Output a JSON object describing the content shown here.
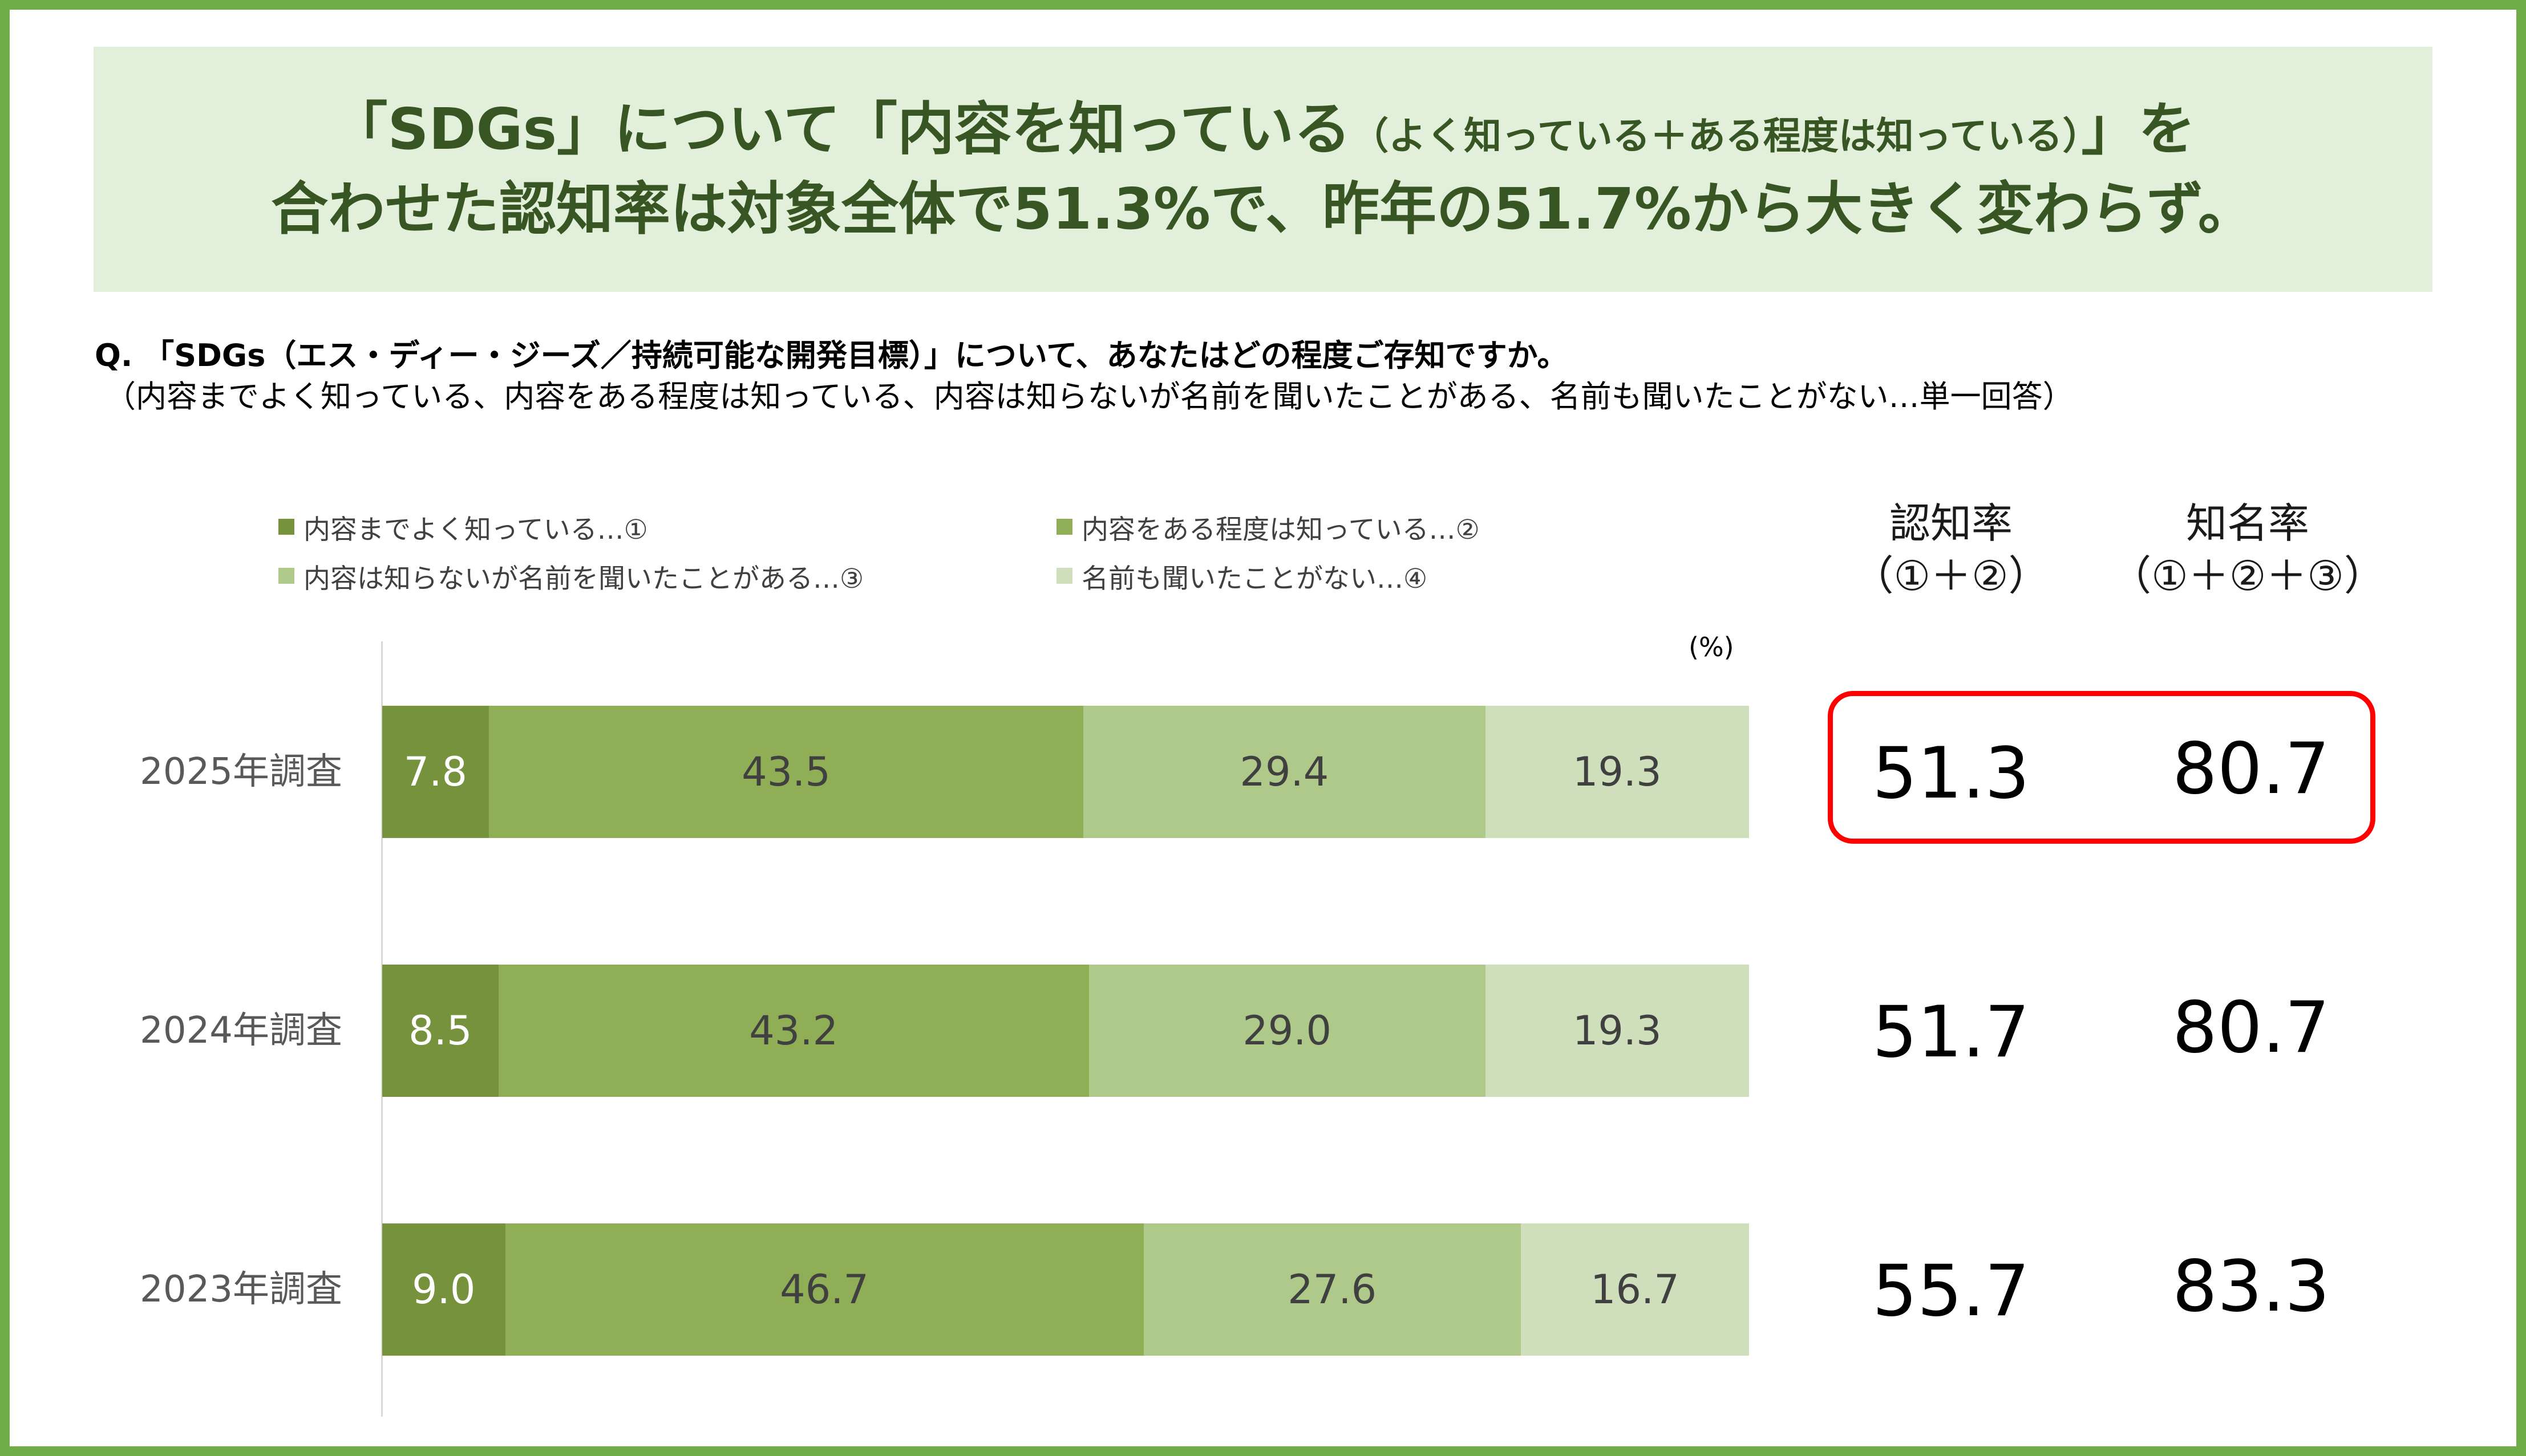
{
  "headline": {
    "line1_prefix": "「SDGs」について「内容を知っている",
    "line1_small": "（よく知っている＋ある程度は知っている）",
    "line1_suffix": "」を",
    "line2": "合わせた認知率は対象全体で51.3%で、昨年の51.7%から大きく変わらず。"
  },
  "question": {
    "line1": "Q. 「SDGs（エス・ディー・ジーズ／持続可能な開発目標）」について、あなたはどの程度ご存知ですか。",
    "line2": "（内容までよく知っている、内容をある程度は知っている、内容は知らないが名前を聞いたことがある、名前も聞いたことがない…単一回答）"
  },
  "columns": {
    "recognition": {
      "title": "認知率",
      "formula": "（①＋②）"
    },
    "awareness": {
      "title": "知名率",
      "formula": "（①＋②＋③）"
    }
  },
  "chart_data": {
    "type": "bar",
    "orientation": "horizontal",
    "stacked": true,
    "unit": "(%)",
    "xlim": [
      0,
      100
    ],
    "categories": [
      "2025年調査",
      "2024年調査",
      "2023年調査"
    ],
    "series": [
      {
        "name": "内容までよく知っている…①",
        "color": "#76923c",
        "values": [
          7.8,
          8.5,
          9.0
        ]
      },
      {
        "name": "内容をある程度は知っている…②",
        "color": "#8fae55",
        "values": [
          43.5,
          43.2,
          46.7
        ]
      },
      {
        "name": "内容は知らないが名前を聞いたことがある…③",
        "color": "#aec98a",
        "values": [
          29.4,
          29.0,
          27.6
        ]
      },
      {
        "name": "名前も聞いたことがない…④",
        "color": "#cfdfbb",
        "values": [
          19.3,
          19.3,
          16.7
        ]
      }
    ],
    "value_labels": [
      [
        "7.8",
        "43.5",
        "29.4",
        "19.3"
      ],
      [
        "8.5",
        "43.2",
        "29.0",
        "19.3"
      ],
      [
        "9.0",
        "46.7",
        "27.6",
        "16.7"
      ]
    ],
    "recognition_rate": [
      "51.3",
      "51.7",
      "55.7"
    ],
    "awareness_rate": [
      "80.7",
      "80.7",
      "83.3"
    ],
    "legend_position": "top",
    "grid": false
  },
  "colors": {
    "frame": "#70ad47",
    "banner_bg": "#e2efda",
    "headline": "#375623",
    "highlight": "#ff0000"
  }
}
